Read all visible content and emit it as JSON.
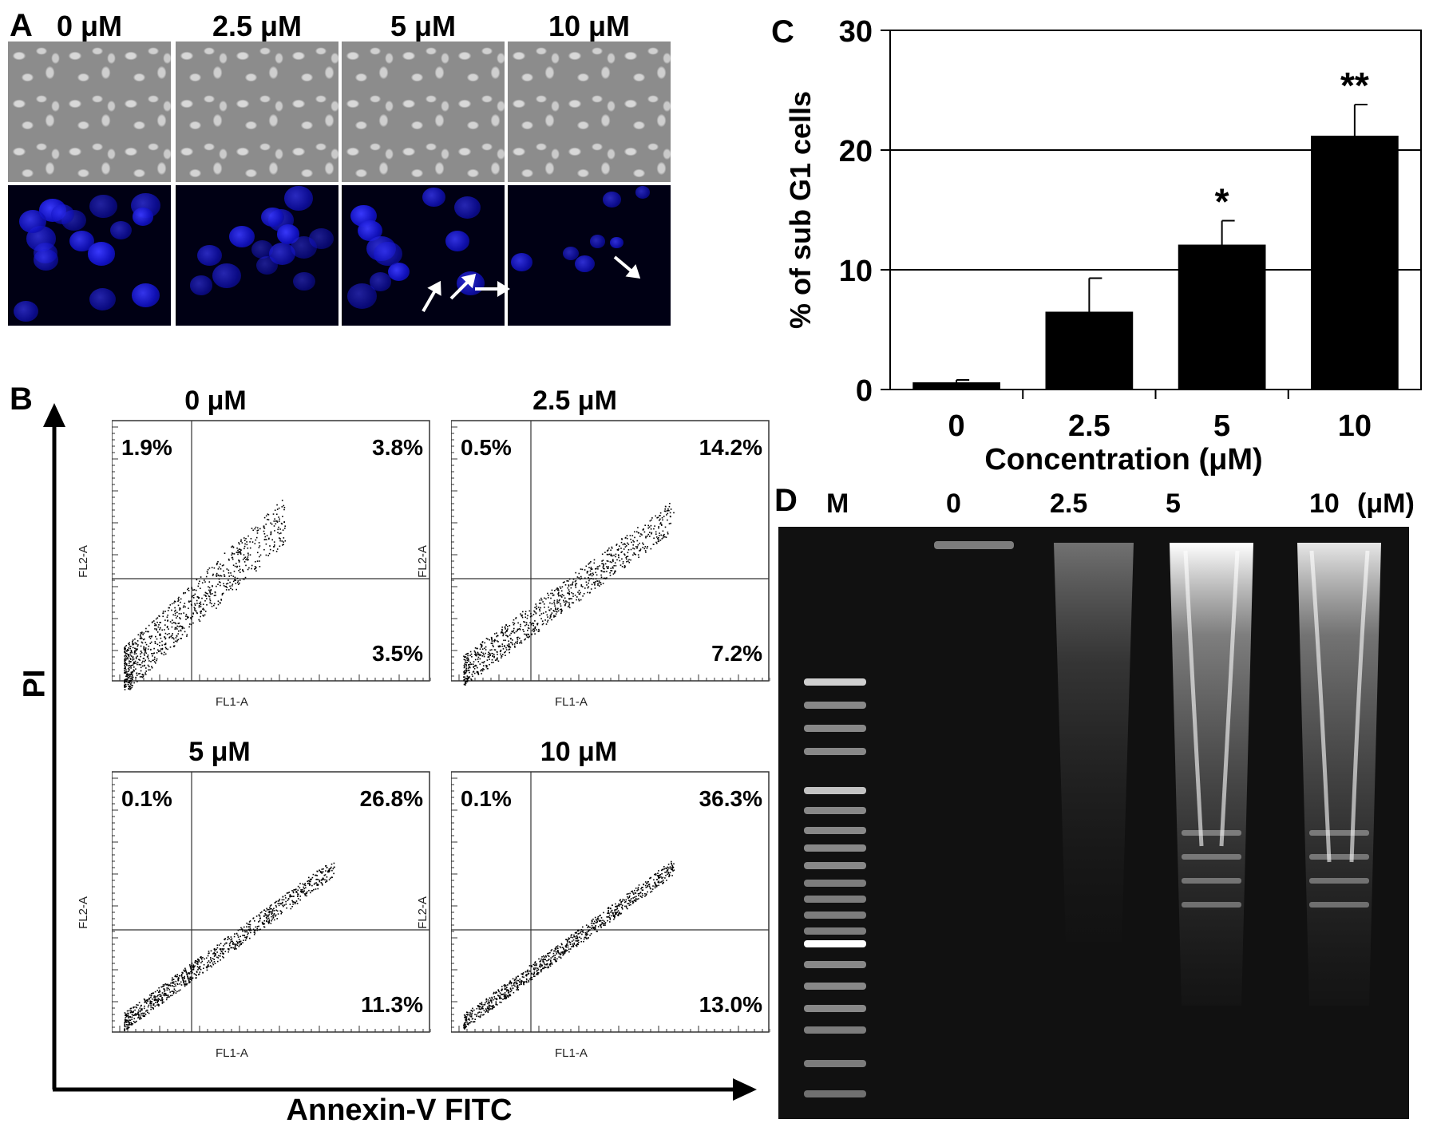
{
  "panel_a": {
    "label": "A",
    "concentrations": [
      "0 μM",
      "2.5 μM",
      "5 μM",
      "10 μM"
    ]
  },
  "panel_b": {
    "label": "B",
    "y_axis_label": "PI",
    "x_axis_label": "Annexin-V FITC",
    "plot_x_label": "FL1-A",
    "plot_y_label": "FL2-A",
    "plots": [
      {
        "title": "0 μM",
        "ul": "1.9%",
        "ur": "3.8%",
        "lr": "3.5%"
      },
      {
        "title": "2.5 μM",
        "ul": "0.5%",
        "ur": "14.2%",
        "lr": "7.2%"
      },
      {
        "title": "5 μM",
        "ul": "0.1%",
        "ur": "26.8%",
        "lr": "11.3%"
      },
      {
        "title": "10 μM",
        "ul": "0.1%",
        "ur": "36.3%",
        "lr": "13.0%"
      }
    ]
  },
  "panel_c": {
    "label": "C"
  },
  "chart_data": {
    "type": "bar",
    "categories": [
      "0",
      "2.5",
      "5",
      "10"
    ],
    "values": [
      0.6,
      6.5,
      12.1,
      21.2
    ],
    "errors": [
      0.2,
      2.8,
      2.0,
      2.6
    ],
    "significance": [
      "",
      "",
      "*",
      "**"
    ],
    "title": "",
    "xlabel": "Concentration (μM)",
    "ylabel": "% of sub G1 cells",
    "ylim": [
      0,
      30
    ],
    "yticks": [
      "0",
      "10",
      "20",
      "30"
    ],
    "grid": true,
    "bar_color": "#000000"
  },
  "panel_d": {
    "label": "D",
    "lanes": [
      "M",
      "0",
      "2.5",
      "5",
      "10"
    ],
    "unit": "(μM)"
  }
}
